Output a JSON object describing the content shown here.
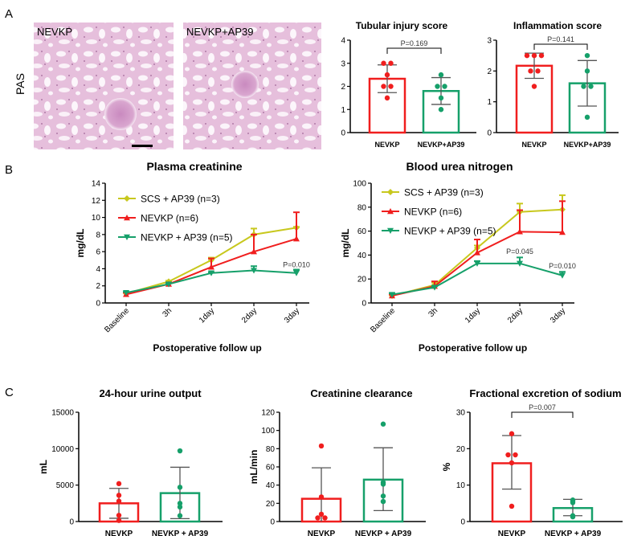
{
  "figure": {
    "panel_labels": [
      "A",
      "B",
      "C"
    ],
    "histology": {
      "stain_label": "PAS",
      "images": [
        {
          "label": "NEVKP"
        },
        {
          "label": "NEVKP+AP39"
        }
      ]
    }
  },
  "colors": {
    "red": "#f01e1e",
    "green": "#16a06a",
    "yellow": "#c8c81e",
    "axis": "#000000",
    "error": "#555555"
  },
  "chart_data": [
    {
      "type": "bar",
      "title": "Tubular injury score",
      "ylabel": "",
      "ylim": [
        0,
        4
      ],
      "ticks": [
        "0",
        "1",
        "2",
        "3",
        "4"
      ],
      "groups": [
        {
          "name": "NEVKP",
          "mean": 2.33,
          "sd_low": 1.73,
          "sd_high": 2.93,
          "points": [
            3,
            3,
            2.5,
            2,
            2,
            1.5
          ],
          "color": "#f01e1e"
        },
        {
          "name": "NEVKP+AP39",
          "mean": 1.8,
          "sd_low": 1.22,
          "sd_high": 2.38,
          "points": [
            2.5,
            2,
            2,
            1.5,
            1
          ],
          "color": "#16a06a"
        }
      ],
      "pvalue": "P=0.169"
    },
    {
      "type": "bar",
      "title": "Inflammation score",
      "ylabel": "",
      "ylim": [
        0,
        3
      ],
      "ticks": [
        "0",
        "1",
        "2",
        "3"
      ],
      "groups": [
        {
          "name": "NEVKP",
          "mean": 2.17,
          "sd_low": 1.76,
          "sd_high": 2.58,
          "points": [
            2.5,
            2.5,
            2.5,
            2,
            2,
            1.5
          ],
          "color": "#f01e1e"
        },
        {
          "name": "NEVKP+AP39",
          "mean": 1.6,
          "sd_low": 0.86,
          "sd_high": 2.34,
          "points": [
            2.5,
            2,
            1.5,
            1.5,
            0.5
          ],
          "color": "#16a06a"
        }
      ],
      "pvalue": "P=0.141"
    },
    {
      "type": "line",
      "title": "Plasma creatinine",
      "ylabel": "mg/dL",
      "xlabel": "Postoperative follow up",
      "ylim": [
        0,
        14
      ],
      "ticks": [
        "0",
        "2",
        "4",
        "6",
        "8",
        "10",
        "12",
        "14"
      ],
      "categories": [
        "Baseline",
        "3h",
        "1day",
        "2day",
        "3day"
      ],
      "series": [
        {
          "name": "SCS + AP39 (n=3)",
          "marker": "diamond",
          "color": "#c8c81e",
          "values": [
            1.1,
            2.5,
            5.0,
            8.0,
            8.8
          ],
          "err_up": [
            0.1,
            0.1,
            0.3,
            0.7,
            0.1
          ]
        },
        {
          "name": "NEVKP (n=6)",
          "marker": "triangle-up",
          "color": "#f01e1e",
          "values": [
            1.0,
            2.2,
            4.2,
            6.0,
            7.5
          ],
          "err_up": [
            0.2,
            0.2,
            1.0,
            2.0,
            3.1
          ]
        },
        {
          "name": "NEVKP + AP39 (n=5)",
          "marker": "triangle-down",
          "color": "#16a06a",
          "values": [
            1.2,
            2.2,
            3.5,
            3.8,
            3.5
          ],
          "err_up": [
            0.1,
            0.1,
            0.1,
            0.5,
            0.4
          ]
        }
      ],
      "annotations": [
        {
          "category": "3day",
          "y": 4.2,
          "text": "P=0.010"
        }
      ]
    },
    {
      "type": "line",
      "title": "Blood urea nitrogen",
      "ylabel": "mg/dL",
      "xlabel": "Postoperative follow up",
      "ylim": [
        0,
        100
      ],
      "ticks": [
        "0",
        "20",
        "40",
        "60",
        "80",
        "100"
      ],
      "categories": [
        "Baseline",
        "3h",
        "1day",
        "2day",
        "3day"
      ],
      "series": [
        {
          "name": "SCS + AP39 (n=3)",
          "marker": "diamond",
          "color": "#c8c81e",
          "values": [
            6,
            15,
            46,
            76,
            78
          ],
          "err_up": [
            1,
            2,
            2,
            7,
            12
          ]
        },
        {
          "name": "NEVKP (n=6)",
          "marker": "triangle-up",
          "color": "#f01e1e",
          "values": [
            6,
            14,
            42,
            59.5,
            59
          ],
          "err_up": [
            1,
            4,
            11,
            18,
            26
          ]
        },
        {
          "name": "NEVKP + AP39 (n=5)",
          "marker": "triangle-down",
          "color": "#16a06a",
          "values": [
            7,
            13,
            33,
            33,
            23
          ],
          "err_up": [
            1,
            1,
            2,
            5,
            3
          ]
        }
      ],
      "annotations": [
        {
          "category": "2day",
          "y": 41,
          "text": "P=0.045"
        },
        {
          "category": "3day",
          "y": 29,
          "text": "P=0.010"
        }
      ]
    },
    {
      "type": "bar",
      "title": "24-hour urine output",
      "ylabel": "mL",
      "ylim": [
        0,
        15000
      ],
      "ticks": [
        "0",
        "5000",
        "10000",
        "15000"
      ],
      "groups": [
        {
          "name": "NEVKP",
          "mean": 2500,
          "sd_low": 450,
          "sd_high": 4550,
          "points": [
            5200,
            3600,
            2800,
            850,
            150
          ],
          "color": "#f01e1e"
        },
        {
          "name": "NEVKP + AP39",
          "mean": 3900,
          "sd_low": 400,
          "sd_high": 7450,
          "points": [
            9700,
            4700,
            2500,
            2000,
            800
          ],
          "color": "#16a06a"
        }
      ],
      "pvalue": ""
    },
    {
      "type": "bar",
      "title": "Creatinine clearance",
      "ylabel": "mL/min",
      "ylim": [
        0,
        120
      ],
      "ticks": [
        "0",
        "20",
        "40",
        "60",
        "80",
        "100",
        "120"
      ],
      "groups": [
        {
          "name": "NEVKP",
          "mean": 25,
          "sd_low": 0,
          "sd_high": 59,
          "points": [
            83,
            27,
            8,
            4,
            4
          ],
          "color": "#f01e1e"
        },
        {
          "name": "NEVKP + AP39",
          "mean": 46,
          "sd_low": 12,
          "sd_high": 81,
          "points": [
            107,
            43,
            41,
            28,
            22
          ],
          "color": "#16a06a"
        }
      ],
      "pvalue": ""
    },
    {
      "type": "bar",
      "title": "Fractional excretion of sodium",
      "ylabel": "%",
      "ylim": [
        0,
        30
      ],
      "ticks": [
        "0",
        "10",
        "20",
        "30"
      ],
      "groups": [
        {
          "name": "NEVKP",
          "mean": 16,
          "sd_low": 8.9,
          "sd_high": 23.6,
          "points": [
            24.1,
            18.3,
            18.3,
            16.1,
            4.2
          ],
          "color": "#f01e1e"
        },
        {
          "name": "NEVKP + AP39",
          "mean": 3.7,
          "sd_low": 1.6,
          "sd_high": 6.1,
          "points": [
            5.9,
            5.6,
            5.2,
            1.6,
            1.3
          ],
          "color": "#16a06a"
        }
      ],
      "pvalue": "P=0.007"
    }
  ]
}
